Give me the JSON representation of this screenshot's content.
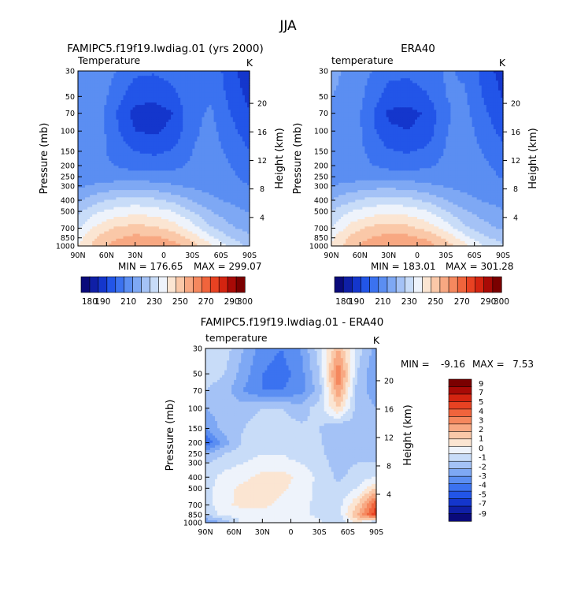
{
  "figure": {
    "title": "JJA"
  },
  "colors": {
    "temperature_scale": [
      "#0a0a7a",
      "#0f1fa6",
      "#1436cc",
      "#2255e8",
      "#3b72f0",
      "#5b8ef2",
      "#7ea8f4",
      "#a4c2f6",
      "#c8dcf8",
      "#eef3fb",
      "#fbe5d2",
      "#fac8a8",
      "#f8a882",
      "#f5885e",
      "#f0643c",
      "#e84222",
      "#d42410",
      "#a80a06",
      "#7a0000"
    ],
    "difference_scale": [
      "#0a0a7a",
      "#0f1fa6",
      "#1436cc",
      "#2255e8",
      "#3b72f0",
      "#5b8ef2",
      "#7ea8f4",
      "#a4c2f6",
      "#c8dcf8",
      "#eef3fb",
      "#fbe5d2",
      "#fac8a8",
      "#f8a882",
      "#f5885e",
      "#f0643c",
      "#e84222",
      "#d42410",
      "#a80a06",
      "#7a0000"
    ]
  },
  "chart_data": [
    {
      "type": "heatmap",
      "id": "model",
      "title": "FAMIPC5.f19f19.lwdiag.01 (yrs 2000)",
      "label_left": "Temperature",
      "units": "K",
      "ylabel": "Pressure (mb)",
      "ylabel_right": "Height (km)",
      "x_ticks": [
        "90N",
        "60N",
        "30N",
        "0",
        "30S",
        "60S",
        "90S"
      ],
      "x_tick_values": [
        90,
        60,
        30,
        0,
        -30,
        -60,
        -90
      ],
      "xlim": [
        90,
        -90
      ],
      "y_scale": "log",
      "y_ticks": [
        30,
        50,
        70,
        100,
        150,
        200,
        250,
        300,
        400,
        500,
        700,
        850,
        1000
      ],
      "ylim": [
        1000,
        30
      ],
      "height_ticks_km": [
        4,
        8,
        12,
        16,
        20
      ],
      "min_label": "MIN = 176.65",
      "max_label": "MAX = 299.07",
      "min": 176.65,
      "max": 299.07,
      "levels": [
        180,
        190,
        200,
        210,
        220,
        230,
        240,
        250,
        260,
        270,
        280,
        290,
        300
      ],
      "colorbar_ticks": [
        "180",
        "190",
        "210",
        "230",
        "250",
        "270",
        "290",
        "300"
      ],
      "grid_lat": [
        90,
        70,
        50,
        30,
        10,
        -10,
        -30,
        -50,
        -70,
        -90
      ],
      "grid_p": [
        1000,
        850,
        700,
        500,
        400,
        300,
        250,
        200,
        150,
        100,
        70,
        50,
        30
      ],
      "grid_values": [
        [
          270,
          285,
          294,
          298,
          298,
          294,
          285,
          272,
          257,
          248
        ],
        [
          266,
          281,
          289,
          293,
          292,
          287,
          277,
          262,
          250,
          243
        ],
        [
          259,
          273,
          281,
          284,
          282,
          276,
          265,
          251,
          242,
          236
        ],
        [
          248,
          259,
          264,
          267,
          265,
          260,
          250,
          240,
          234,
          229
        ],
        [
          238,
          247,
          252,
          254,
          252,
          247,
          239,
          232,
          228,
          224
        ],
        [
          228,
          232,
          235,
          236,
          234,
          231,
          228,
          226,
          224,
          220
        ],
        [
          224,
          225,
          225,
          225,
          225,
          224,
          225,
          226,
          222,
          217
        ],
        [
          222,
          222,
          220,
          216,
          215,
          217,
          222,
          226,
          220,
          214
        ],
        [
          224,
          224,
          216,
          210,
          208,
          211,
          220,
          225,
          217,
          210
        ],
        [
          226,
          226,
          212,
          200,
          198,
          203,
          218,
          223,
          213,
          205
        ],
        [
          228,
          226,
          210,
          196,
          195,
          200,
          218,
          221,
          210,
          201
        ],
        [
          229,
          227,
          214,
          204,
          203,
          207,
          219,
          219,
          207,
          197
        ],
        [
          230,
          228,
          220,
          212,
          211,
          214,
          220,
          217,
          204,
          192
        ]
      ]
    },
    {
      "type": "heatmap",
      "id": "obs",
      "title": "ERA40",
      "label_left": "temperature",
      "units": "K",
      "ylabel": "Pressure (mb)",
      "ylabel_right": "Height (km)",
      "x_ticks": [
        "90N",
        "60N",
        "30N",
        "0",
        "30S",
        "60S",
        "90S"
      ],
      "x_tick_values": [
        90,
        60,
        30,
        0,
        -30,
        -60,
        -90
      ],
      "xlim": [
        90,
        -90
      ],
      "y_scale": "log",
      "y_ticks": [
        30,
        50,
        70,
        100,
        150,
        200,
        250,
        300,
        400,
        500,
        700,
        850,
        1000
      ],
      "ylim": [
        1000,
        30
      ],
      "height_ticks_km": [
        4,
        8,
        12,
        16,
        20
      ],
      "min_label": "MIN = 183.01",
      "max_label": "MAX = 301.28",
      "min": 183.01,
      "max": 301.28,
      "levels": [
        180,
        190,
        200,
        210,
        220,
        230,
        240,
        250,
        260,
        270,
        280,
        290,
        300
      ],
      "colorbar_ticks": [
        "180",
        "190",
        "210",
        "230",
        "250",
        "270",
        "290",
        "300"
      ],
      "grid_lat": [
        90,
        70,
        50,
        30,
        10,
        -10,
        -30,
        -50,
        -70,
        -90
      ],
      "grid_p": [
        1000,
        850,
        700,
        500,
        400,
        300,
        250,
        200,
        150,
        100,
        70,
        50,
        30
      ],
      "grid_values": [
        [
          272,
          286,
          295,
          299,
          299,
          295,
          286,
          274,
          260,
          252
        ],
        [
          268,
          282,
          290,
          294,
          293,
          288,
          278,
          264,
          252,
          246
        ],
        [
          261,
          274,
          282,
          285,
          283,
          277,
          266,
          252,
          244,
          238
        ],
        [
          250,
          260,
          265,
          268,
          266,
          261,
          251,
          241,
          235,
          231
        ],
        [
          240,
          248,
          253,
          255,
          253,
          248,
          240,
          233,
          229,
          226
        ],
        [
          230,
          233,
          236,
          237,
          235,
          232,
          229,
          227,
          225,
          222
        ],
        [
          226,
          226,
          226,
          226,
          226,
          225,
          226,
          227,
          224,
          219
        ],
        [
          225,
          224,
          221,
          217,
          216,
          218,
          223,
          227,
          222,
          216
        ],
        [
          228,
          226,
          218,
          211,
          209,
          212,
          221,
          226,
          219,
          212
        ],
        [
          229,
          228,
          214,
          202,
          200,
          204,
          219,
          225,
          215,
          207
        ],
        [
          230,
          228,
          213,
          198,
          197,
          201,
          219,
          223,
          212,
          203
        ],
        [
          230,
          229,
          216,
          206,
          205,
          209,
          220,
          221,
          209,
          199
        ],
        [
          231,
          229,
          221,
          213,
          212,
          215,
          221,
          219,
          206,
          195
        ]
      ]
    },
    {
      "type": "heatmap",
      "id": "diff",
      "title": "FAMIPC5.f19f19.lwdiag.01 - ERA40",
      "label_left": "temperature",
      "units": "K",
      "ylabel": "Pressure (mb)",
      "ylabel_right": "Height (km)",
      "x_ticks": [
        "90N",
        "60N",
        "30N",
        "0",
        "30S",
        "60S",
        "90S"
      ],
      "x_tick_values": [
        90,
        60,
        30,
        0,
        -30,
        -60,
        -90
      ],
      "xlim": [
        90,
        -90
      ],
      "y_scale": "log",
      "y_ticks": [
        30,
        50,
        70,
        100,
        150,
        200,
        250,
        300,
        400,
        500,
        700,
        850,
        1000
      ],
      "ylim": [
        1000,
        30
      ],
      "height_ticks_km": [
        4,
        8,
        12,
        16,
        20
      ],
      "min_label": "MIN =",
      "min_value": "-9.16",
      "max_label": "MAX =",
      "max_value": "7.53",
      "min": -9.16,
      "max": 7.53,
      "levels": [
        -9,
        -8,
        -7,
        -6,
        -5,
        -4,
        -3,
        -2,
        -1,
        0,
        1,
        2,
        3,
        4,
        5,
        6,
        7,
        8,
        9
      ],
      "colorbar_ticks": [
        "9",
        "7",
        "5",
        "4",
        "3",
        "2",
        "1",
        "0",
        "-1",
        "-2",
        "-3",
        "-4",
        "-5",
        "-7",
        "-9"
      ],
      "grid_lat": [
        90,
        70,
        50,
        30,
        10,
        -10,
        -30,
        -50,
        -70,
        -90
      ],
      "grid_p": [
        1000,
        850,
        700,
        500,
        400,
        300,
        250,
        200,
        150,
        100,
        70,
        50,
        30
      ],
      "grid_values": [
        [
          -4,
          -3,
          -0.5,
          -0.3,
          -0.3,
          -0.5,
          -0.8,
          -2,
          0.5,
          -3
        ],
        [
          -2,
          -0.5,
          -0.8,
          -0.6,
          -0.8,
          -0.8,
          -1.2,
          -1.5,
          2,
          6
        ],
        [
          -1.5,
          -0.2,
          0.3,
          0.4,
          -0.4,
          -0.8,
          -1.2,
          -1.5,
          1,
          5
        ],
        [
          -1.4,
          -0.4,
          0.3,
          0.5,
          0.3,
          -0.6,
          -1.2,
          -1.8,
          -1,
          1
        ],
        [
          -1.6,
          -0.6,
          -0.3,
          0.4,
          0.5,
          -0.3,
          -1.3,
          -2.2,
          -1.5,
          -1
        ],
        [
          -2,
          -1.5,
          -1,
          -0.7,
          -0.8,
          -1,
          -1.5,
          -2.5,
          -2,
          -2
        ],
        [
          -3,
          -2,
          -1.3,
          -1,
          -1,
          -1.3,
          -1.8,
          -2.5,
          -2.5,
          -2.5
        ],
        [
          -6,
          -3.5,
          -1.8,
          -1.3,
          -1.3,
          -1.6,
          -1.8,
          -3,
          -3,
          -3
        ],
        [
          -4,
          -2.5,
          -2,
          -1.5,
          -1.5,
          -1.8,
          -2,
          -3,
          -2.5,
          -3
        ],
        [
          -3,
          -2.5,
          -2.5,
          -2,
          -2,
          -2.5,
          -1.5,
          1,
          -2.5,
          -3
        ],
        [
          -2,
          -2.5,
          -4,
          -5,
          -5,
          -4.5,
          -2.5,
          3,
          -2.5,
          -3.5
        ],
        [
          -1.5,
          -2,
          -3.5,
          -5,
          -5.5,
          -4.5,
          -2,
          4,
          -2,
          -4
        ],
        [
          -1,
          -1.5,
          -3,
          -4.5,
          -5,
          -4,
          -1.5,
          2,
          -1.5,
          -3.5
        ]
      ]
    }
  ]
}
